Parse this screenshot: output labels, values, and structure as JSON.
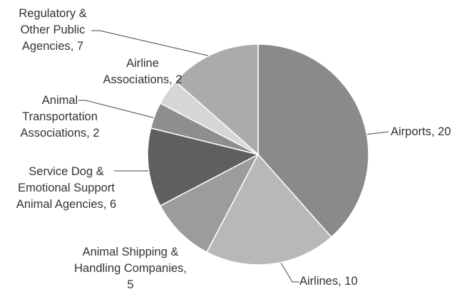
{
  "chart_data": {
    "type": "pie",
    "categories": [
      "Airports, 20",
      "Airlines, 10",
      "Animal Shipping & Handling Companies, 5",
      "Service Dog & Emotional Support Animal Agencies, 6",
      "Animal Transportation Associations, 2",
      "Airline Associations, 2",
      "Regulatory & Other Public Agencies, 7"
    ],
    "values": [
      20,
      10,
      5,
      6,
      2,
      2,
      7
    ],
    "colors": [
      "#8a8a8a",
      "#b8b8b8",
      "#9c9c9c",
      "#5f5f5f",
      "#8e8e8e",
      "#d6d6d6",
      "#ababab"
    ]
  }
}
